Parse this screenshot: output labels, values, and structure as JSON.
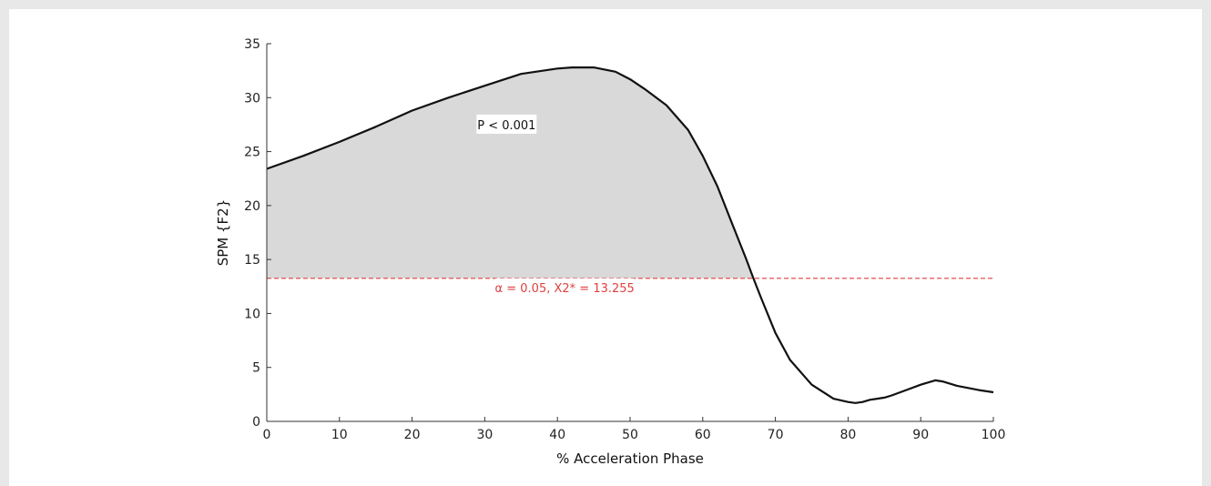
{
  "chart_data": {
    "type": "line",
    "xlabel": "% Acceleration Phase",
    "ylabel": "SPM {F2}",
    "xlim": [
      0,
      100
    ],
    "ylim": [
      0,
      35
    ],
    "x_ticks": [
      0,
      10,
      20,
      30,
      40,
      50,
      60,
      70,
      80,
      90,
      100
    ],
    "y_ticks": [
      0,
      5,
      10,
      15,
      20,
      25,
      30,
      35
    ],
    "grid": false,
    "series": [
      {
        "x": [
          0,
          5,
          10,
          15,
          20,
          25,
          30,
          35,
          40,
          42,
          45,
          48,
          50,
          52,
          55,
          58,
          60,
          62,
          64,
          66,
          67,
          68,
          70,
          72,
          75,
          78,
          80,
          81,
          82,
          83,
          84,
          85,
          86,
          88,
          90,
          92,
          93,
          95,
          98,
          100
        ],
        "y": [
          23.4,
          24.6,
          25.9,
          27.3,
          28.8,
          30.0,
          31.1,
          32.2,
          32.7,
          32.8,
          32.8,
          32.4,
          31.7,
          30.8,
          29.3,
          27.0,
          24.6,
          21.8,
          18.4,
          15.0,
          13.2,
          11.5,
          8.2,
          5.7,
          3.4,
          2.1,
          1.8,
          1.7,
          1.8,
          2.0,
          2.1,
          2.2,
          2.4,
          2.9,
          3.4,
          3.8,
          3.7,
          3.3,
          2.9,
          2.7
        ],
        "color": "#111111"
      }
    ],
    "threshold": {
      "value": 13.255,
      "color": "#e04040",
      "label": "α = 0.05,   X2* = 13.255"
    },
    "supra_threshold_fill": "#d9d9d9",
    "annotations": [
      {
        "text": "P < 0.001",
        "x": 33,
        "y": 27.5
      }
    ]
  }
}
